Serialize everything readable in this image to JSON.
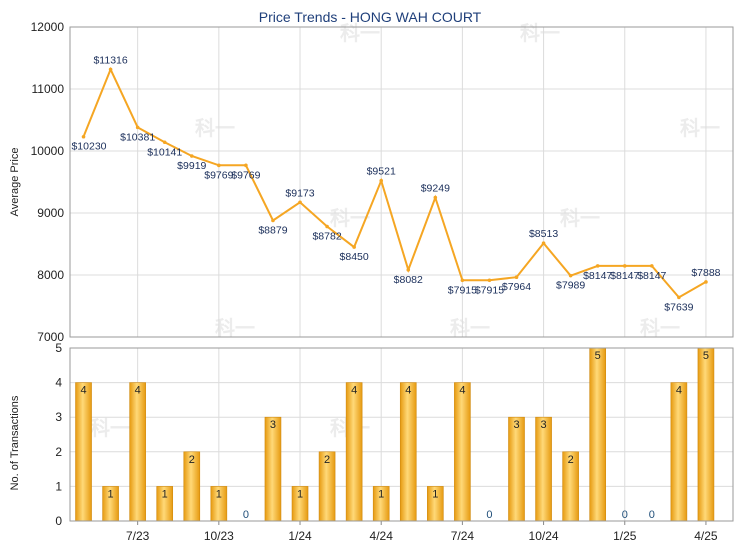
{
  "chart_data": [
    {
      "type": "line",
      "title": "Price Trends - HONG WAH COURT",
      "xlabel": "",
      "ylabel": "Average Price",
      "ylim": [
        7000,
        12000
      ],
      "yticks": [
        "7000",
        "8000",
        "9000",
        "10000",
        "11000",
        "12000"
      ],
      "grid": true,
      "series": [
        {
          "color": "#f5a623",
          "values": [
            10230,
            11316,
            10381,
            10141,
            9919,
            9769,
            9769,
            8879,
            9173,
            8782,
            8450,
            9521,
            8082,
            9249,
            7915,
            7915,
            7964,
            8513,
            7989,
            8147,
            8147,
            8147,
            7639,
            7888
          ],
          "labels": [
            "$10230",
            "$11316",
            "$10381",
            "$10141",
            "$9919",
            "$9769",
            "$9769",
            "$8879",
            "$9173",
            "$8782",
            "$8450",
            "$9521",
            "$8082",
            "$9249",
            "$7915",
            "$7915",
            "$7964",
            "$8513",
            "$7989",
            "$8147",
            "$8147",
            "$8147",
            "$7639",
            "$7888"
          ]
        }
      ]
    },
    {
      "type": "bar",
      "xlabel": "",
      "ylabel": "No. of Transactions",
      "ylim": [
        0,
        5
      ],
      "yticks": [
        "0",
        "1",
        "2",
        "3",
        "4",
        "5"
      ],
      "grid": true,
      "values": [
        4,
        1,
        4,
        1,
        2,
        1,
        0,
        3,
        1,
        2,
        4,
        1,
        4,
        1,
        4,
        0,
        3,
        3,
        2,
        5,
        0,
        0,
        4,
        5
      ],
      "value_labels": [
        "4",
        "1",
        "4",
        "1",
        "2",
        "1",
        "0",
        "3",
        "1",
        "2",
        "4",
        "1",
        "4",
        "1",
        "4",
        "0",
        "3",
        "3",
        "2",
        "5",
        "0",
        "0",
        "4",
        "5"
      ],
      "x_tick_labels": [
        "7/23",
        "10/23",
        "1/24",
        "4/24",
        "7/24",
        "10/24",
        "1/25",
        "4/25"
      ],
      "bar_color": "#f0b030",
      "zero_label_color": "#1f4e79"
    }
  ],
  "watermark": "科一"
}
